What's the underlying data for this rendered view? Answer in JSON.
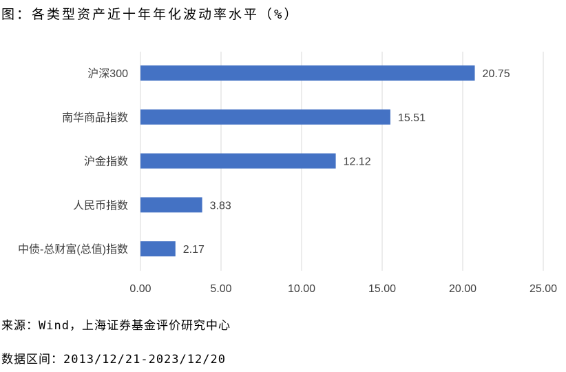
{
  "title": "图：各类型资产近十年年化波动率水平（%）",
  "source": "来源：Wind，上海证券基金评价研究中心",
  "date_range": "数据区间：2013/12/21-2023/12/20",
  "colors": {
    "bar": "#4472C4",
    "grid": "#D9D9D9"
  },
  "chart_data": {
    "type": "bar",
    "orientation": "horizontal",
    "categories": [
      "沪深300",
      "南华商品指数",
      "沪金指数",
      "人民币指数",
      "中债-总财富(总值)指数"
    ],
    "values": [
      20.75,
      15.51,
      12.12,
      3.83,
      2.17
    ],
    "data_labels": [
      "20.75",
      "15.51",
      "12.12",
      "3.83",
      "2.17"
    ],
    "xlim": [
      0,
      25
    ],
    "xticks": [
      "0.00",
      "5.00",
      "10.00",
      "15.00",
      "20.00",
      "25.00"
    ],
    "grid": true,
    "legend": "none"
  }
}
